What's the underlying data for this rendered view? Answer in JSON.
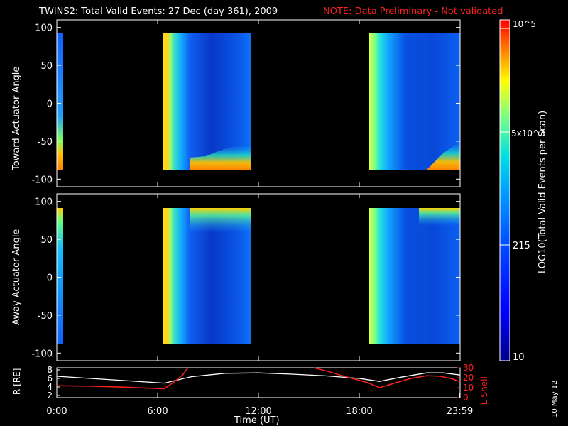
{
  "title": {
    "main": "TWINS2: Total Valid Events: 27 Dec (day 361), 2009",
    "note": "NOTE: Data Preliminary - Not validated"
  },
  "colorbar": {
    "label": "LOG10(Total Valid Events per Scan)",
    "ticks": [
      "10",
      "215",
      "5x10^3",
      "10^5"
    ],
    "colors": {
      "low": "#00008b",
      "high": "#ff0000"
    }
  },
  "date_stamp": "10 May 12",
  "chart_data": [
    {
      "type": "heatmap",
      "panel": "top",
      "ylabel": "Toward Actuator Angle",
      "ylim": [
        -110,
        110
      ],
      "yticks": [
        100,
        50,
        0,
        -50,
        -100
      ],
      "xlim": [
        0,
        24
      ],
      "data_blocks": [
        {
          "x_start": 0,
          "x_end": 0.25,
          "y_range": [
            -90,
            90
          ]
        },
        {
          "x_start": 6.35,
          "x_end": 11.6,
          "y_range": [
            -90,
            90
          ]
        },
        {
          "x_start": 18.75,
          "x_end": 24,
          "y_range": [
            -90,
            90
          ]
        }
      ]
    },
    {
      "type": "heatmap",
      "panel": "middle",
      "ylabel": "Away Actuator Angle",
      "ylim": [
        -110,
        110
      ],
      "yticks": [
        100,
        50,
        0,
        -50,
        -100
      ],
      "xlim": [
        0,
        24
      ],
      "data_blocks": [
        {
          "x_start": 0,
          "x_end": 0.25,
          "y_range": [
            -90,
            90
          ]
        },
        {
          "x_start": 6.35,
          "x_end": 11.6,
          "y_range": [
            -90,
            90
          ]
        },
        {
          "x_start": 18.75,
          "x_end": 24,
          "y_range": [
            -90,
            90
          ]
        }
      ]
    },
    {
      "type": "line",
      "panel": "bottom",
      "ylabel_left": "R [RE]",
      "ylabel_right": "L Shell",
      "ylim_left": [
        1.5,
        8.5
      ],
      "yticks_left": [
        2,
        4,
        6,
        8
      ],
      "ylim_right": [
        0,
        30
      ],
      "yticks_right": [
        0,
        10,
        20,
        30
      ],
      "xlabel": "Time (UT)",
      "xticks": [
        {
          "value": 0,
          "label": "0:00"
        },
        {
          "value": 6,
          "label": "6:00"
        },
        {
          "value": 12,
          "label": "12:00"
        },
        {
          "value": 18,
          "label": "18:00"
        },
        {
          "value": 23.98,
          "label": "23:59"
        }
      ],
      "series": [
        {
          "axis": "left",
          "color": "#ffffff",
          "x": [
            0,
            2,
            4,
            6.4,
            8,
            10,
            12,
            14,
            16,
            18,
            19.2,
            20.5,
            22,
            23,
            24
          ],
          "y": [
            6.5,
            6.0,
            5.5,
            4.9,
            6.4,
            7.2,
            7.3,
            7.0,
            6.6,
            6.0,
            5.3,
            6.3,
            7.3,
            7.3,
            6.8
          ]
        },
        {
          "axis": "right",
          "color": "#ff2020",
          "x": [
            0,
            2,
            4,
            6.2,
            6.4,
            7,
            7.5,
            7.8,
            15.3,
            16,
            17,
            18.5,
            19.2,
            20,
            21,
            22,
            22.8,
            23.5,
            24
          ],
          "y": [
            12,
            11.5,
            10.5,
            9,
            9,
            16,
            23,
            30,
            30,
            27,
            22,
            15,
            10,
            14,
            19,
            22,
            21.5,
            19,
            16
          ]
        }
      ]
    }
  ]
}
